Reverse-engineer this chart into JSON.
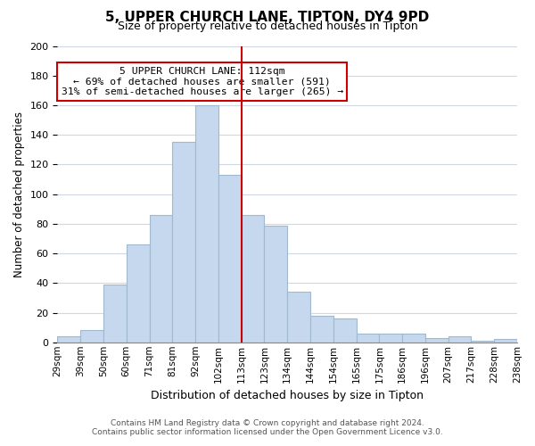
{
  "title": "5, UPPER CHURCH LANE, TIPTON, DY4 9PD",
  "subtitle": "Size of property relative to detached houses in Tipton",
  "xlabel": "Distribution of detached houses by size in Tipton",
  "ylabel": "Number of detached properties",
  "footnote1": "Contains HM Land Registry data © Crown copyright and database right 2024.",
  "footnote2": "Contains public sector information licensed under the Open Government Licence v3.0.",
  "bin_edges": [
    "29sqm",
    "39sqm",
    "50sqm",
    "60sqm",
    "71sqm",
    "81sqm",
    "92sqm",
    "102sqm",
    "113sqm",
    "123sqm",
    "134sqm",
    "144sqm",
    "154sqm",
    "165sqm",
    "175sqm",
    "186sqm",
    "196sqm",
    "207sqm",
    "217sqm",
    "228sqm",
    "238sqm"
  ],
  "bar_heights": [
    4,
    8,
    39,
    66,
    86,
    135,
    160,
    113,
    86,
    79,
    34,
    18,
    16,
    6,
    6,
    6,
    3,
    4,
    1,
    2
  ],
  "bar_color": "#c5d8ed",
  "bar_edge_color": "#a0b8d0",
  "property_line_index": 8,
  "property_line_color": "#cc0000",
  "annotation_title": "5 UPPER CHURCH LANE: 112sqm",
  "annotation_line1": "← 69% of detached houses are smaller (591)",
  "annotation_line2": "31% of semi-detached houses are larger (265) →",
  "annotation_box_color": "#ffffff",
  "annotation_box_edge": "#cc0000",
  "ylim": [
    0,
    200
  ],
  "yticks": [
    0,
    20,
    40,
    60,
    80,
    100,
    120,
    140,
    160,
    180,
    200
  ],
  "background_color": "#ffffff",
  "grid_color": "#d0d8e4"
}
